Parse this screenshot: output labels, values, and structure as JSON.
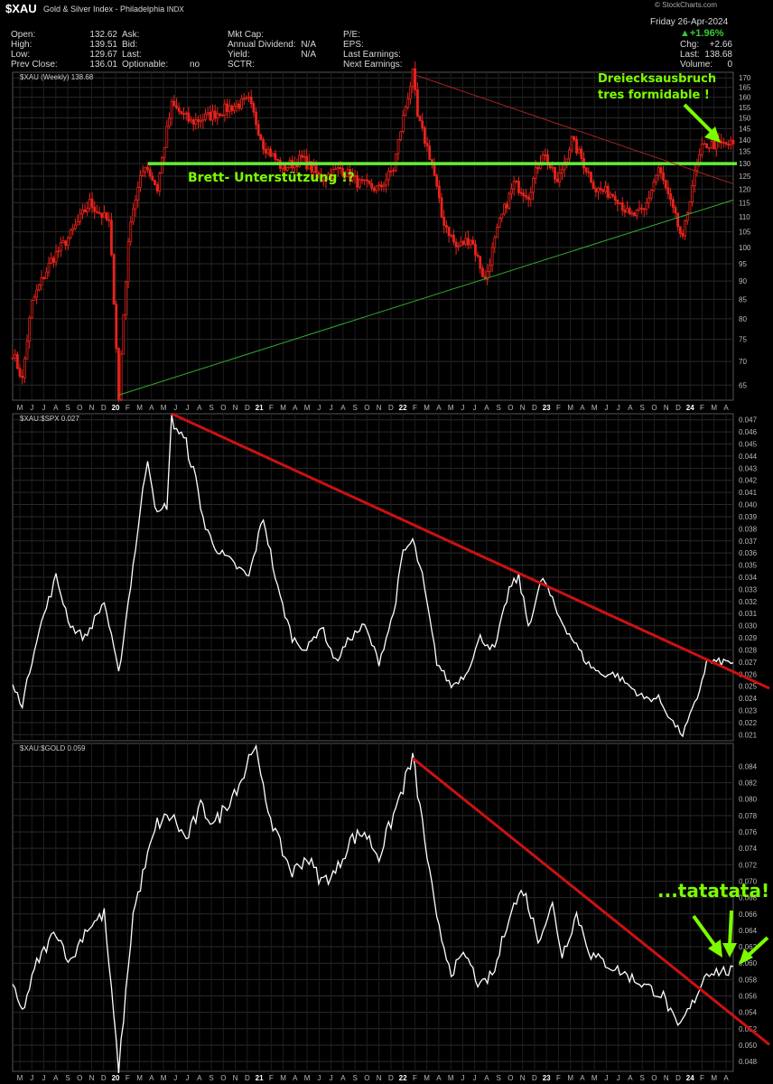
{
  "header": {
    "symbol": "$XAU",
    "name": "Gold & Silver Index - Philadelphia",
    "exchange": "INDX",
    "watermark": "© StockCharts.com",
    "date": "Friday  26-Apr-2024",
    "quote": [
      [
        "Open:",
        "132.62"
      ],
      [
        "High:",
        "139.51"
      ],
      [
        "Low:",
        "129.67"
      ],
      [
        "Prev Close:",
        "136.01"
      ]
    ],
    "mid1": [
      [
        "Ask:",
        ""
      ],
      [
        "Bid:",
        ""
      ],
      [
        "Last:",
        ""
      ],
      [
        "Optionable:",
        "no"
      ]
    ],
    "mid2": [
      [
        "Mkt Cap:",
        ""
      ],
      [
        "Annual Dividend:",
        "N/A"
      ],
      [
        "Yield:",
        "N/A"
      ],
      [
        "SCTR:",
        ""
      ]
    ],
    "mid3": [
      [
        "P/E:",
        ""
      ],
      [
        "EPS:",
        ""
      ],
      [
        "Last Earnings:",
        ""
      ],
      [
        "Next Earnings:",
        ""
      ]
    ],
    "right": [
      [
        "Chg:",
        "+2.66"
      ],
      [
        "Last:",
        "138.68"
      ],
      [
        "Volume:",
        "0"
      ]
    ],
    "pct_change": "▲+1.96%",
    "colors": {
      "up": "#33cc33",
      "candle": "#e8231c",
      "support": "#66ee33",
      "trend": "#cc1111",
      "line": "#ffffff",
      "annotation": "#7CFC00"
    }
  },
  "x_axis": {
    "months": [
      "M",
      "J",
      "J",
      "A",
      "S",
      "O",
      "N",
      "D",
      "20",
      "F",
      "M",
      "A",
      "M",
      "J",
      "J",
      "A",
      "S",
      "O",
      "N",
      "D",
      "21",
      "F",
      "M",
      "A",
      "M",
      "J",
      "J",
      "A",
      "S",
      "O",
      "N",
      "D",
      "22",
      "F",
      "M",
      "A",
      "M",
      "J",
      "J",
      "A",
      "S",
      "O",
      "N",
      "D",
      "23",
      "F",
      "M",
      "A",
      "M",
      "J",
      "J",
      "A",
      "S",
      "O",
      "N",
      "D",
      "24",
      "F",
      "M",
      "A"
    ],
    "years": [
      "20",
      "21",
      "22",
      "23",
      "24"
    ]
  },
  "chart_data": [
    {
      "type": "candlestick",
      "label": "$XAU (Weekly) 138.68",
      "y_ticks": [
        65,
        70,
        75,
        80,
        85,
        90,
        95,
        100,
        105,
        110,
        115,
        120,
        125,
        130,
        135,
        140,
        145,
        150,
        155,
        160,
        165,
        170
      ],
      "ylim": [
        62,
        173
      ],
      "scale": "log",
      "key_points": [
        [
          0,
          72
        ],
        [
          4,
          66
        ],
        [
          8,
          84
        ],
        [
          16,
          96
        ],
        [
          24,
          104
        ],
        [
          32,
          115
        ],
        [
          40,
          108
        ],
        [
          44,
          62
        ],
        [
          49,
          110
        ],
        [
          55,
          130
        ],
        [
          60,
          120
        ],
        [
          66,
          156
        ],
        [
          74,
          148
        ],
        [
          82,
          151
        ],
        [
          90,
          155
        ],
        [
          98,
          158
        ],
        [
          104,
          138
        ],
        [
          112,
          128
        ],
        [
          120,
          132
        ],
        [
          128,
          124
        ],
        [
          136,
          128
        ],
        [
          144,
          122
        ],
        [
          152,
          120
        ],
        [
          158,
          128
        ],
        [
          162,
          150
        ],
        [
          166,
          172
        ],
        [
          168,
          150
        ],
        [
          174,
          130
        ],
        [
          178,
          110
        ],
        [
          184,
          100
        ],
        [
          190,
          103
        ],
        [
          196,
          90
        ],
        [
          202,
          108
        ],
        [
          208,
          122
        ],
        [
          214,
          118
        ],
        [
          220,
          135
        ],
        [
          226,
          122
        ],
        [
          232,
          140
        ],
        [
          236,
          132
        ],
        [
          242,
          120
        ],
        [
          250,
          118
        ],
        [
          256,
          110
        ],
        [
          262,
          112
        ],
        [
          268,
          128
        ],
        [
          274,
          112
        ],
        [
          278,
          102
        ],
        [
          282,
          122
        ],
        [
          286,
          136
        ],
        [
          288,
          138
        ]
      ],
      "annotations": {
        "support_label": "Brett- Unterstützung !?",
        "breakout_line1": "Dreiecksausbruch",
        "breakout_line2": "tres formidable !"
      },
      "support_level": 130,
      "upper_trend": [
        [
          166,
          172
        ],
        [
          299,
          122
        ]
      ],
      "lower_trend": [
        [
          44,
          63
        ],
        [
          299,
          116
        ]
      ]
    },
    {
      "type": "line",
      "label": "$XAU:$SPX 0.027",
      "y_ticks": [
        0.021,
        0.022,
        0.023,
        0.024,
        0.025,
        0.026,
        0.027,
        0.028,
        0.029,
        0.03,
        0.031,
        0.032,
        0.033,
        0.034,
        0.035,
        0.036,
        0.037,
        0.038,
        0.039,
        0.04,
        0.041,
        0.042,
        0.043,
        0.044,
        0.045,
        0.046,
        0.047
      ],
      "ylim": [
        0.0205,
        0.0475
      ],
      "key_points": [
        [
          0,
          0.025
        ],
        [
          4,
          0.0235
        ],
        [
          10,
          0.029
        ],
        [
          18,
          0.034
        ],
        [
          24,
          0.03
        ],
        [
          30,
          0.029
        ],
        [
          38,
          0.032
        ],
        [
          44,
          0.026
        ],
        [
          50,
          0.035
        ],
        [
          56,
          0.044
        ],
        [
          60,
          0.039
        ],
        [
          64,
          0.04
        ],
        [
          66,
          0.047
        ],
        [
          72,
          0.045
        ],
        [
          76,
          0.042
        ],
        [
          80,
          0.038
        ],
        [
          86,
          0.036
        ],
        [
          92,
          0.035
        ],
        [
          98,
          0.034
        ],
        [
          104,
          0.039
        ],
        [
          110,
          0.033
        ],
        [
          116,
          0.029
        ],
        [
          122,
          0.028
        ],
        [
          128,
          0.03
        ],
        [
          134,
          0.027
        ],
        [
          140,
          0.029
        ],
        [
          146,
          0.03
        ],
        [
          152,
          0.027
        ],
        [
          158,
          0.031
        ],
        [
          162,
          0.036
        ],
        [
          166,
          0.037
        ],
        [
          170,
          0.034
        ],
        [
          176,
          0.027
        ],
        [
          182,
          0.025
        ],
        [
          188,
          0.026
        ],
        [
          194,
          0.029
        ],
        [
          200,
          0.028
        ],
        [
          206,
          0.033
        ],
        [
          210,
          0.034
        ],
        [
          214,
          0.03
        ],
        [
          220,
          0.034
        ],
        [
          226,
          0.031
        ],
        [
          232,
          0.029
        ],
        [
          238,
          0.027
        ],
        [
          244,
          0.026
        ],
        [
          250,
          0.026
        ],
        [
          256,
          0.025
        ],
        [
          262,
          0.024
        ],
        [
          268,
          0.024
        ],
        [
          274,
          0.022
        ],
        [
          278,
          0.021
        ],
        [
          284,
          0.024
        ],
        [
          288,
          0.027
        ]
      ],
      "trend": [
        [
          66,
          0.0475
        ],
        [
          299,
          0.0262
        ]
      ]
    },
    {
      "type": "line",
      "label": "$XAU:$GOLD 0.059",
      "y_ticks": [
        0.048,
        0.05,
        0.052,
        0.054,
        0.056,
        0.058,
        0.06,
        0.062,
        0.064,
        0.066,
        0.068,
        0.07,
        0.072,
        0.074,
        0.076,
        0.078,
        0.08,
        0.082,
        0.084
      ],
      "ylim": [
        0.0468,
        0.0868
      ],
      "key_points": [
        [
          0,
          0.057
        ],
        [
          4,
          0.054
        ],
        [
          10,
          0.06
        ],
        [
          18,
          0.064
        ],
        [
          24,
          0.06
        ],
        [
          30,
          0.064
        ],
        [
          38,
          0.066
        ],
        [
          44,
          0.047
        ],
        [
          50,
          0.066
        ],
        [
          56,
          0.073
        ],
        [
          60,
          0.077
        ],
        [
          66,
          0.078
        ],
        [
          72,
          0.075
        ],
        [
          78,
          0.079
        ],
        [
          84,
          0.077
        ],
        [
          90,
          0.08
        ],
        [
          96,
          0.083
        ],
        [
          100,
          0.087
        ],
        [
          104,
          0.081
        ],
        [
          110,
          0.075
        ],
        [
          116,
          0.071
        ],
        [
          122,
          0.073
        ],
        [
          128,
          0.07
        ],
        [
          134,
          0.071
        ],
        [
          140,
          0.075
        ],
        [
          146,
          0.076
        ],
        [
          152,
          0.073
        ],
        [
          158,
          0.078
        ],
        [
          166,
          0.085
        ],
        [
          170,
          0.077
        ],
        [
          176,
          0.065
        ],
        [
          182,
          0.059
        ],
        [
          188,
          0.061
        ],
        [
          194,
          0.057
        ],
        [
          200,
          0.059
        ],
        [
          206,
          0.066
        ],
        [
          212,
          0.069
        ],
        [
          218,
          0.063
        ],
        [
          224,
          0.067
        ],
        [
          228,
          0.061
        ],
        [
          234,
          0.066
        ],
        [
          240,
          0.061
        ],
        [
          246,
          0.06
        ],
        [
          252,
          0.059
        ],
        [
          258,
          0.058
        ],
        [
          264,
          0.057
        ],
        [
          270,
          0.056
        ],
        [
          276,
          0.052
        ],
        [
          282,
          0.055
        ],
        [
          288,
          0.059
        ]
      ],
      "trend": [
        [
          166,
          0.085
        ],
        [
          299,
          0.0536
        ]
      ],
      "annotations": {
        "tatatata": "...tatatata!"
      }
    }
  ]
}
